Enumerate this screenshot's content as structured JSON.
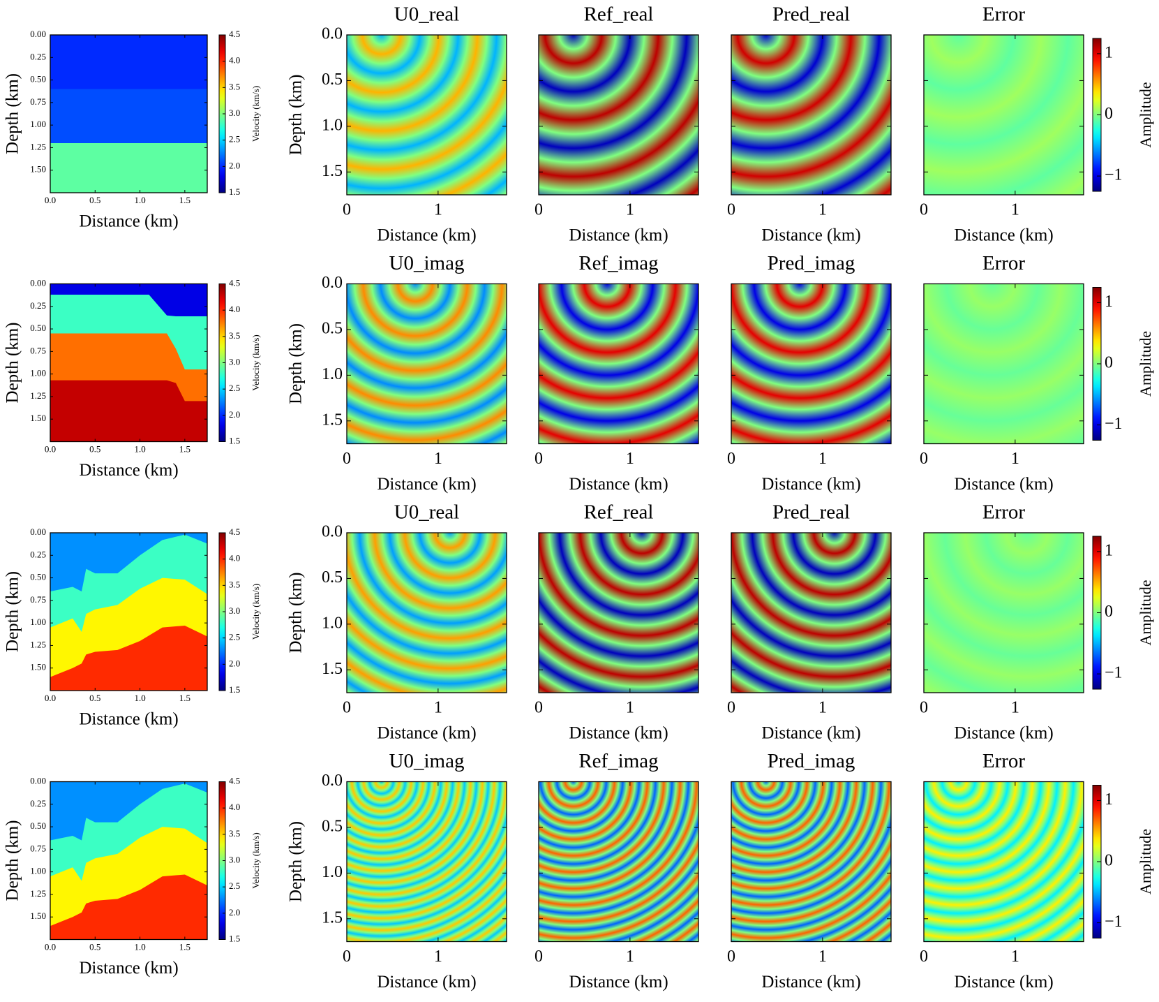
{
  "chart_data": [
    {
      "type": "seismic",
      "velocity_model": {
        "xlabel": "Distance (km)",
        "ylabel": "Depth (km)",
        "xlim": [
          0,
          1.75
        ],
        "ylim": [
          1.75,
          0
        ],
        "xticks": [
          {
            "value": 0,
            "label": "0.0"
          },
          0.5,
          {
            "value": 1,
            "label": "1.0"
          },
          1.5
        ],
        "yticks": [
          {
            "value": 0,
            "label": "0.00"
          },
          0.25,
          {
            "value": 0.5,
            "label": "0.50"
          },
          0.75,
          {
            "value": 1,
            "label": "1.00"
          },
          1.25,
          {
            "value": 1.5,
            "label": "1.50"
          }
        ],
        "colorbar": {
          "label": "Velocity (km/s)",
          "lim": [
            1.5,
            4.5
          ],
          "ticks": [
            1.5,
            {
              "value": 2,
              "label": "2.0"
            },
            2.5,
            {
              "value": 3,
              "label": "3.0"
            },
            3.5,
            {
              "value": 4,
              "label": "4.0"
            },
            4.5
          ]
        },
        "x": [
          0,
          1.75
        ],
        "layers": [
          {
            "velocity": 2.0,
            "top": [
              0,
              0
            ]
          },
          {
            "velocity": 2.1,
            "top": [
              0.6,
              0.6
            ]
          },
          {
            "velocity": 2.9,
            "top": [
              1.2,
              1.2
            ]
          }
        ]
      },
      "wavefield": {
        "xlabel": "Distance (km)",
        "ylabel": "Depth (km)",
        "xlim": [
          0,
          1.75
        ],
        "ylim": [
          1.75,
          0
        ],
        "xticks": [
          0,
          1
        ],
        "yticks": [
          {
            "value": 0,
            "label": "0.0"
          },
          0.5,
          {
            "value": 1,
            "label": "1.0"
          },
          1.5
        ],
        "colorbar": {
          "label": "Amplitude",
          "lim": [
            -1.25,
            1.25
          ],
          "ticks": [
            {
              "value": -1,
              "label": "−1"
            },
            0,
            1
          ]
        },
        "panels": [
          {
            "title": "U0_real",
            "source": [
              0.38,
              0
            ],
            "wavelength": 0.42,
            "amplitude": 0.5
          },
          {
            "title": "Ref_real",
            "source": [
              0.38,
              0
            ],
            "wavelength": 0.62,
            "amplitude": 1.1
          },
          {
            "title": "Pred_real",
            "source": [
              0.38,
              0
            ],
            "wavelength": 0.62,
            "amplitude": 1.05
          },
          {
            "title": "Error",
            "source": [
              0.38,
              0
            ],
            "wavelength": 0.6,
            "amplitude": 0.08
          }
        ]
      }
    },
    {
      "type": "seismic",
      "velocity_model": {
        "xlabel": "Distance (km)",
        "ylabel": "Depth (km)",
        "xlim": [
          0,
          1.75
        ],
        "ylim": [
          1.75,
          0
        ],
        "xticks": [
          {
            "value": 0,
            "label": "0.0"
          },
          0.5,
          {
            "value": 1,
            "label": "1.0"
          },
          1.5
        ],
        "yticks": [
          {
            "value": 0,
            "label": "0.00"
          },
          0.25,
          {
            "value": 0.5,
            "label": "0.50"
          },
          0.75,
          {
            "value": 1,
            "label": "1.00"
          },
          1.25,
          {
            "value": 1.5,
            "label": "1.50"
          }
        ],
        "colorbar": {
          "label": "Velocity (km/s)",
          "lim": [
            1.5,
            4.5
          ],
          "ticks": [
            1.5,
            {
              "value": 2,
              "label": "2.0"
            },
            2.5,
            {
              "value": 3,
              "label": "3.0"
            },
            3.5,
            {
              "value": 4,
              "label": "4.0"
            },
            4.5
          ]
        },
        "x": [
          0,
          0.5,
          1.0,
          1.1,
          1.3,
          1.4,
          1.5,
          1.75
        ],
        "layers": [
          {
            "velocity": 1.8,
            "top": [
              0,
              0,
              0,
              0,
              0,
              0,
              0,
              0
            ]
          },
          {
            "velocity": 2.8,
            "top": [
              0.12,
              0.12,
              0.12,
              0.12,
              0.35,
              0.36,
              0.36,
              0.36
            ]
          },
          {
            "velocity": 3.8,
            "top": [
              0.55,
              0.55,
              0.55,
              0.55,
              0.55,
              0.72,
              0.95,
              0.95
            ]
          },
          {
            "velocity": 4.3,
            "top": [
              1.07,
              1.07,
              1.07,
              1.07,
              1.07,
              1.1,
              1.3,
              1.3
            ]
          }
        ]
      },
      "wavefield": {
        "xlabel": "Distance (km)",
        "ylabel": "Depth (km)",
        "xlim": [
          0,
          1.75
        ],
        "ylim": [
          1.75,
          0
        ],
        "xticks": [
          0,
          1
        ],
        "yticks": [
          {
            "value": 0,
            "label": "0.0"
          },
          0.5,
          {
            "value": 1,
            "label": "1.0"
          },
          1.5
        ],
        "colorbar": {
          "label": "Amplitude",
          "lim": [
            -1.25,
            1.25
          ],
          "ticks": [
            {
              "value": -1,
              "label": "−1"
            },
            0,
            1
          ]
        },
        "panels": [
          {
            "title": "U0_imag",
            "source": [
              0.75,
              0
            ],
            "wavelength": 0.38,
            "amplitude": 0.6
          },
          {
            "title": "Ref_imag",
            "source": [
              0.75,
              0
            ],
            "wavelength": 0.5,
            "amplitude": 1.0
          },
          {
            "title": "Pred_imag",
            "source": [
              0.75,
              0
            ],
            "wavelength": 0.5,
            "amplitude": 1.0
          },
          {
            "title": "Error",
            "source": [
              0.75,
              0
            ],
            "wavelength": 0.5,
            "amplitude": 0.06
          }
        ]
      }
    },
    {
      "type": "seismic",
      "velocity_model": {
        "xlabel": "Distance (km)",
        "ylabel": "Depth (km)",
        "xlim": [
          0,
          1.75
        ],
        "ylim": [
          1.75,
          0
        ],
        "xticks": [
          {
            "value": 0,
            "label": "0.0"
          },
          0.5,
          {
            "value": 1,
            "label": "1.0"
          },
          1.5
        ],
        "yticks": [
          {
            "value": 0,
            "label": "0.00"
          },
          0.25,
          {
            "value": 0.5,
            "label": "0.50"
          },
          0.75,
          {
            "value": 1,
            "label": "1.00"
          },
          1.25,
          {
            "value": 1.5,
            "label": "1.50"
          }
        ],
        "colorbar": {
          "label": "Velocity (km/s)",
          "lim": [
            1.5,
            4.5
          ],
          "ticks": [
            1.5,
            {
              "value": 2,
              "label": "2.0"
            },
            2.5,
            {
              "value": 3,
              "label": "3.0"
            },
            3.5,
            {
              "value": 4,
              "label": "4.0"
            },
            4.5
          ]
        },
        "x": [
          0,
          0.25,
          0.35,
          0.4,
          0.5,
          0.75,
          1.0,
          1.25,
          1.5,
          1.75
        ],
        "layers": [
          {
            "velocity": 2.3,
            "top": [
              0,
              0,
              0,
              0,
              0,
              0,
              0,
              0,
              0,
              0
            ]
          },
          {
            "velocity": 2.8,
            "top": [
              0.65,
              0.6,
              0.65,
              0.4,
              0.45,
              0.45,
              0.25,
              0.08,
              0.02,
              0.12
            ]
          },
          {
            "velocity": 3.4,
            "top": [
              1.05,
              0.95,
              1.1,
              0.9,
              0.85,
              0.8,
              0.62,
              0.5,
              0.52,
              0.68
            ]
          },
          {
            "velocity": 4.0,
            "top": [
              1.6,
              1.5,
              1.45,
              1.35,
              1.32,
              1.3,
              1.2,
              1.05,
              1.03,
              1.15
            ]
          }
        ]
      },
      "wavefield": {
        "xlabel": "Distance (km)",
        "ylabel": "Depth (km)",
        "xlim": [
          0,
          1.75
        ],
        "ylim": [
          1.75,
          0
        ],
        "xticks": [
          0,
          1
        ],
        "yticks": [
          {
            "value": 0,
            "label": "0.0"
          },
          0.5,
          {
            "value": 1,
            "label": "1.0"
          },
          1.5
        ],
        "colorbar": {
          "label": "Amplitude",
          "lim": [
            -1.25,
            1.25
          ],
          "ticks": [
            {
              "value": -1,
              "label": "−1"
            },
            0,
            1
          ]
        },
        "panels": [
          {
            "title": "U0_real",
            "source": [
              1.13,
              0
            ],
            "wavelength": 0.33,
            "amplitude": 0.55
          },
          {
            "title": "Ref_real",
            "source": [
              1.13,
              0
            ],
            "wavelength": 0.45,
            "amplitude": 1.1
          },
          {
            "title": "Pred_real",
            "source": [
              1.13,
              0
            ],
            "wavelength": 0.45,
            "amplitude": 1.1
          },
          {
            "title": "Error",
            "source": [
              1.13,
              0
            ],
            "wavelength": 0.45,
            "amplitude": 0.06
          }
        ]
      }
    },
    {
      "type": "seismic",
      "velocity_model": {
        "xlabel": "Distance (km)",
        "ylabel": "Depth (km)",
        "xlim": [
          0,
          1.75
        ],
        "ylim": [
          1.75,
          0
        ],
        "xticks": [
          {
            "value": 0,
            "label": "0.0"
          },
          0.5,
          {
            "value": 1,
            "label": "1.0"
          },
          1.5
        ],
        "yticks": [
          {
            "value": 0,
            "label": "0.00"
          },
          0.25,
          {
            "value": 0.5,
            "label": "0.50"
          },
          0.75,
          {
            "value": 1,
            "label": "1.00"
          },
          1.25,
          {
            "value": 1.5,
            "label": "1.50"
          }
        ],
        "colorbar": {
          "label": "Velocity (km/s)",
          "lim": [
            1.5,
            4.5
          ],
          "ticks": [
            1.5,
            {
              "value": 2,
              "label": "2.0"
            },
            2.5,
            {
              "value": 3,
              "label": "3.0"
            },
            3.5,
            {
              "value": 4,
              "label": "4.0"
            },
            4.5
          ]
        },
        "x": [
          0,
          0.25,
          0.35,
          0.4,
          0.5,
          0.75,
          1.0,
          1.25,
          1.5,
          1.75
        ],
        "layers": [
          {
            "velocity": 2.3,
            "top": [
              0,
              0,
              0,
              0,
              0,
              0,
              0,
              0,
              0,
              0
            ]
          },
          {
            "velocity": 2.8,
            "top": [
              0.65,
              0.6,
              0.65,
              0.4,
              0.45,
              0.45,
              0.25,
              0.08,
              0.02,
              0.12
            ]
          },
          {
            "velocity": 3.4,
            "top": [
              1.05,
              0.95,
              1.1,
              0.9,
              0.85,
              0.8,
              0.62,
              0.5,
              0.52,
              0.68
            ]
          },
          {
            "velocity": 4.0,
            "top": [
              1.6,
              1.5,
              1.45,
              1.35,
              1.32,
              1.3,
              1.2,
              1.05,
              1.03,
              1.15
            ]
          }
        ]
      },
      "wavefield": {
        "xlabel": "Distance (km)",
        "ylabel": "Depth (km)",
        "xlim": [
          0,
          1.75
        ],
        "ylim": [
          1.75,
          0
        ],
        "xticks": [
          0,
          1
        ],
        "yticks": [
          {
            "value": 0,
            "label": "0.0"
          },
          0.5,
          {
            "value": 1,
            "label": "1.0"
          },
          1.5
        ],
        "colorbar": {
          "label": "Amplitude",
          "lim": [
            -1.25,
            1.25
          ],
          "ticks": [
            {
              "value": -1,
              "label": "−1"
            },
            0,
            1
          ]
        },
        "panels": [
          {
            "title": "U0_imag",
            "source": [
              0.38,
              0
            ],
            "wavelength": 0.13,
            "amplitude": 0.45
          },
          {
            "title": "Ref_imag",
            "source": [
              0.38,
              0
            ],
            "wavelength": 0.18,
            "amplitude": 0.7
          },
          {
            "title": "Pred_imag",
            "source": [
              0.38,
              0
            ],
            "wavelength": 0.18,
            "amplitude": 0.7
          },
          {
            "title": "Error",
            "source": [
              0.38,
              0
            ],
            "wavelength": 0.18,
            "amplitude": 0.35
          }
        ]
      }
    }
  ]
}
